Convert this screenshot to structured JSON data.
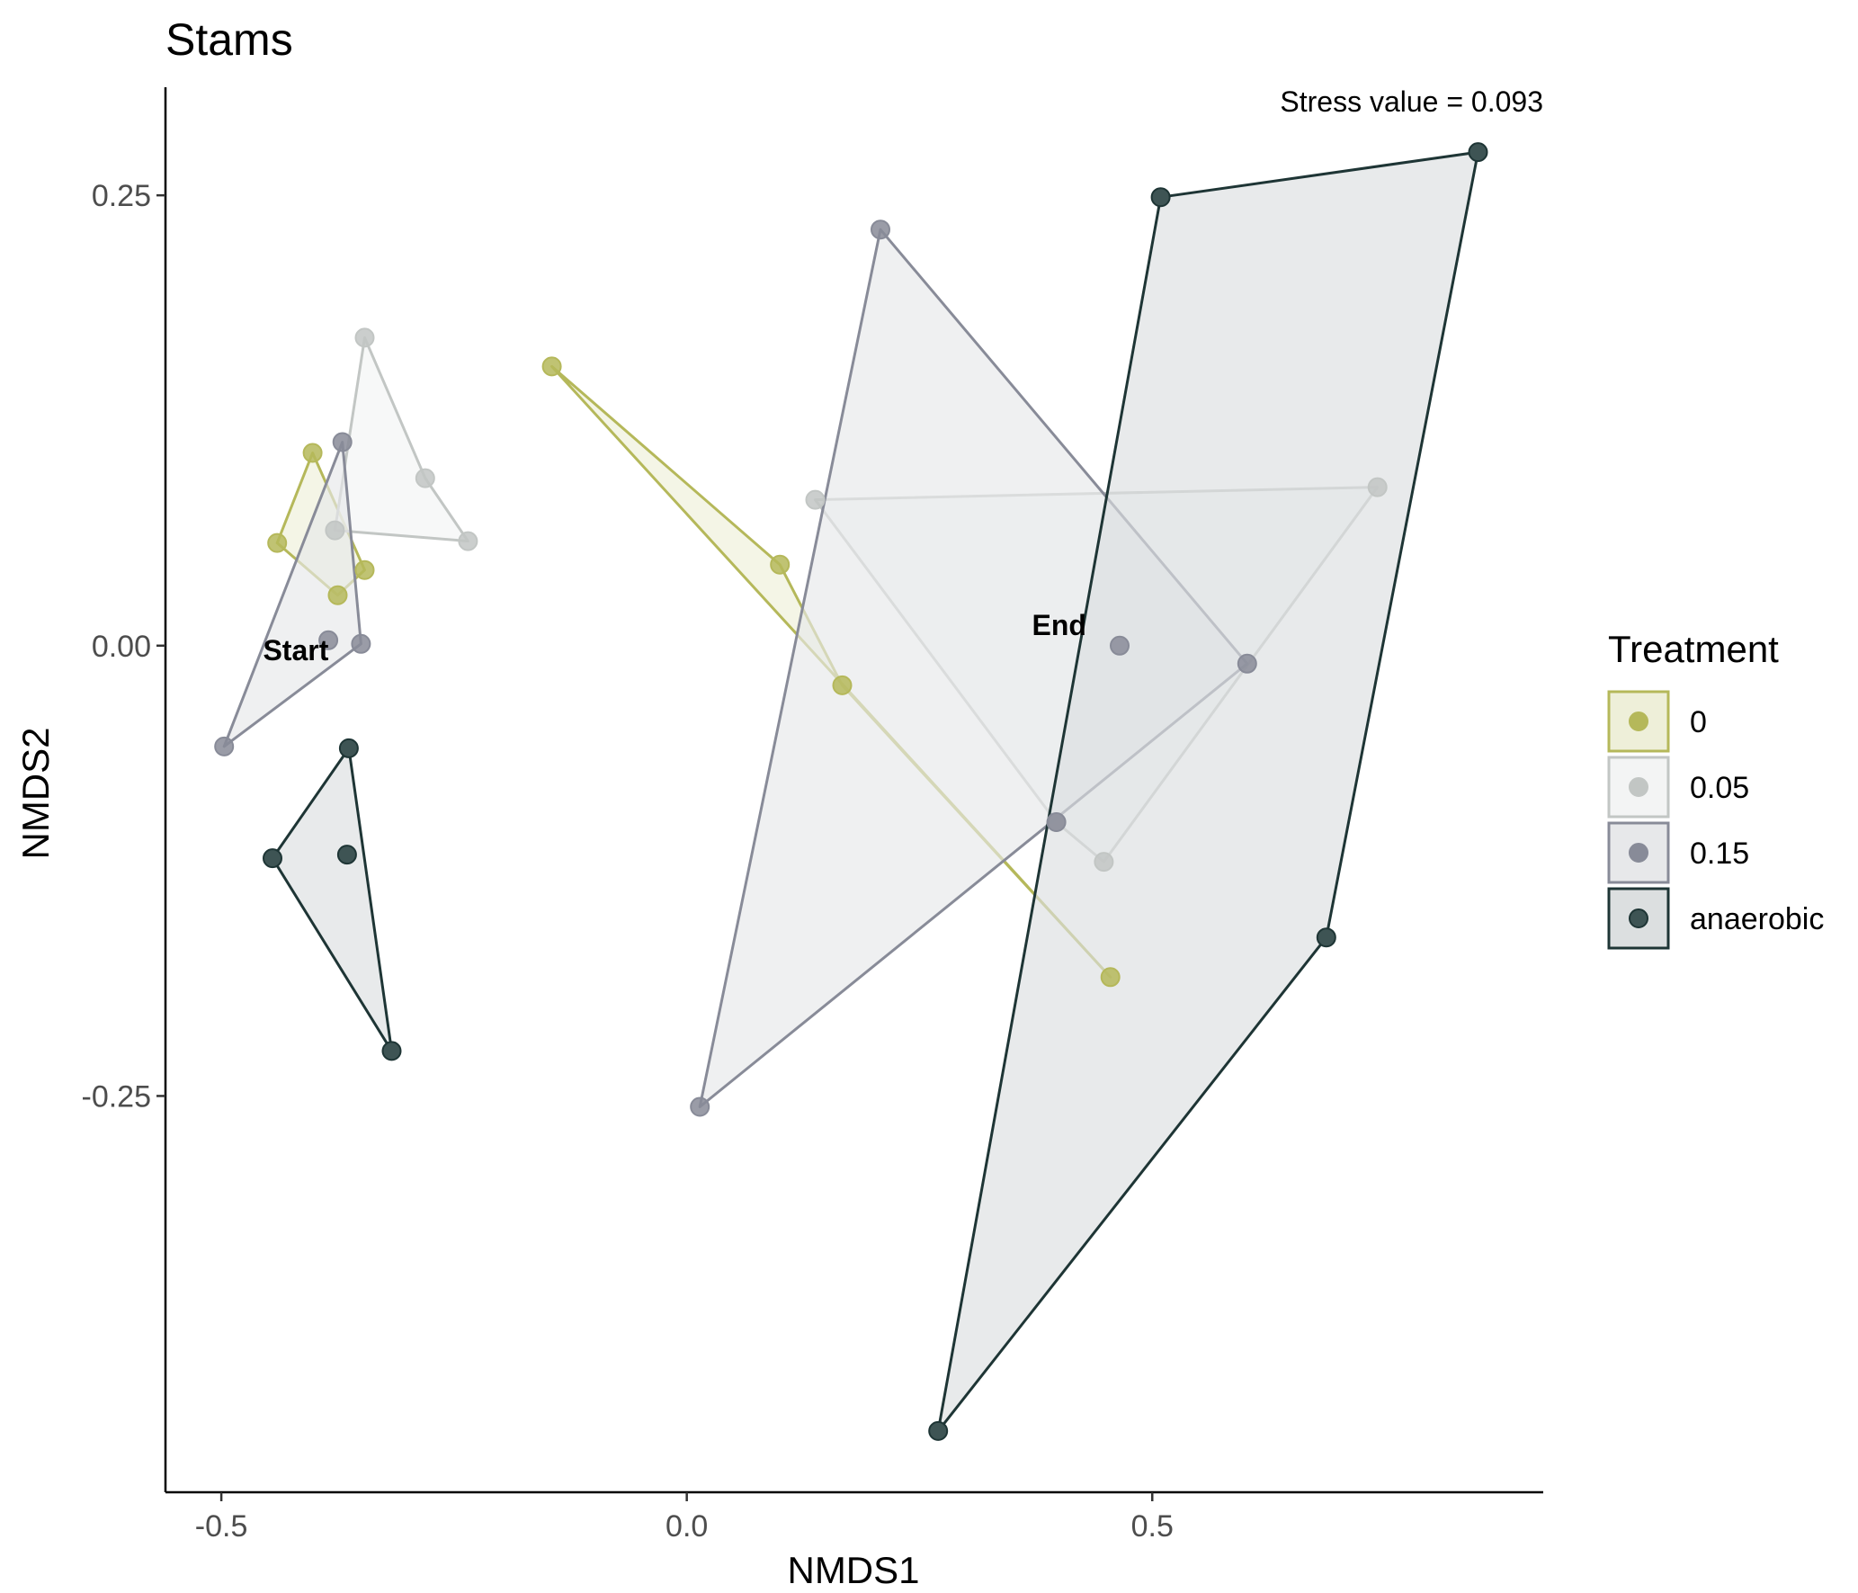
{
  "chart_data": {
    "type": "scatter",
    "title": "Stams",
    "xlabel": "NMDS1",
    "ylabel": "NMDS2",
    "xlim": [
      -0.56,
      0.92
    ],
    "ylim": [
      -0.47,
      0.31
    ],
    "x_ticks": [
      -0.5,
      0.0,
      0.5
    ],
    "x_tick_labels": [
      "-0.5",
      "0.0",
      "0.5"
    ],
    "y_ticks": [
      0.25,
      0.0,
      -0.25
    ],
    "y_tick_labels": [
      "0.25",
      "0.00",
      "-0.25"
    ],
    "grid": false,
    "annotation": "Stress value = 0.093",
    "legend": {
      "title": "Treatment",
      "position": "right"
    },
    "labels": [
      {
        "text": "Start",
        "x": -0.42,
        "y": -0.008
      },
      {
        "text": "End",
        "x": 0.4,
        "y": 0.006
      }
    ],
    "series": [
      {
        "name": "0",
        "color": "#b5b85a",
        "fill": "#eeefd9",
        "hulls": [
          [
            [
              -0.402,
              0.107
            ],
            [
              -0.44,
              0.057
            ],
            [
              -0.375,
              0.028
            ],
            [
              -0.346,
              0.042
            ]
          ],
          [
            [
              -0.145,
              0.155
            ],
            [
              0.1,
              0.045
            ],
            [
              0.167,
              -0.022
            ],
            [
              0.455,
              -0.184
            ]
          ]
        ],
        "points": [
          [
            -0.402,
            0.107
          ],
          [
            -0.44,
            0.057
          ],
          [
            -0.375,
            0.028
          ],
          [
            -0.346,
            0.042
          ],
          [
            -0.145,
            0.155
          ],
          [
            0.1,
            0.045
          ],
          [
            0.167,
            -0.022
          ],
          [
            0.455,
            -0.184
          ]
        ]
      },
      {
        "name": "0.05",
        "color": "#c2c6c4",
        "fill": "#f3f4f4",
        "hulls": [
          [
            [
              -0.346,
              0.171
            ],
            [
              -0.281,
              0.093
            ],
            [
              -0.235,
              0.058
            ],
            [
              -0.378,
              0.064
            ]
          ],
          [
            [
              0.138,
              0.081
            ],
            [
              0.742,
              0.088
            ],
            [
              0.448,
              -0.12
            ],
            [
              0.397,
              -0.098
            ]
          ]
        ],
        "points": [
          [
            -0.346,
            0.171
          ],
          [
            -0.281,
            0.093
          ],
          [
            -0.235,
            0.058
          ],
          [
            -0.378,
            0.064
          ],
          [
            0.138,
            0.081
          ],
          [
            0.742,
            0.088
          ],
          [
            0.448,
            -0.12
          ],
          [
            0.397,
            -0.098
          ]
        ]
      },
      {
        "name": "0.15",
        "color": "#888b98",
        "fill": "#e7e8ea",
        "hulls": [
          [
            [
              -0.37,
              0.113
            ],
            [
              -0.35,
              0.001
            ],
            [
              -0.497,
              -0.056
            ]
          ],
          [
            [
              0.208,
              0.231
            ],
            [
              0.602,
              -0.01
            ],
            [
              0.014,
              -0.256
            ]
          ]
        ],
        "points": [
          [
            -0.37,
            0.113
          ],
          [
            -0.35,
            0.001
          ],
          [
            -0.385,
            0.003
          ],
          [
            -0.497,
            -0.056
          ],
          [
            0.208,
            0.231
          ],
          [
            0.465,
            0.0
          ],
          [
            0.602,
            -0.01
          ],
          [
            0.397,
            -0.098
          ],
          [
            0.014,
            -0.256
          ]
        ]
      },
      {
        "name": "anaerobic",
        "color": "#1e3535",
        "marker": "#3e5454",
        "fill": "#dcdfe0",
        "hulls": [
          [
            [
              -0.363,
              -0.057
            ],
            [
              -0.317,
              -0.225
            ],
            [
              -0.445,
              -0.118
            ]
          ],
          [
            [
              0.509,
              0.249
            ],
            [
              0.85,
              0.274
            ],
            [
              0.687,
              -0.162
            ],
            [
              0.27,
              -0.436
            ]
          ]
        ],
        "points": [
          [
            -0.363,
            -0.057
          ],
          [
            -0.365,
            -0.116
          ],
          [
            -0.445,
            -0.118
          ],
          [
            -0.317,
            -0.225
          ],
          [
            0.509,
            0.249
          ],
          [
            0.85,
            0.274
          ],
          [
            0.687,
            -0.162
          ],
          [
            0.27,
            -0.436
          ]
        ]
      }
    ]
  }
}
